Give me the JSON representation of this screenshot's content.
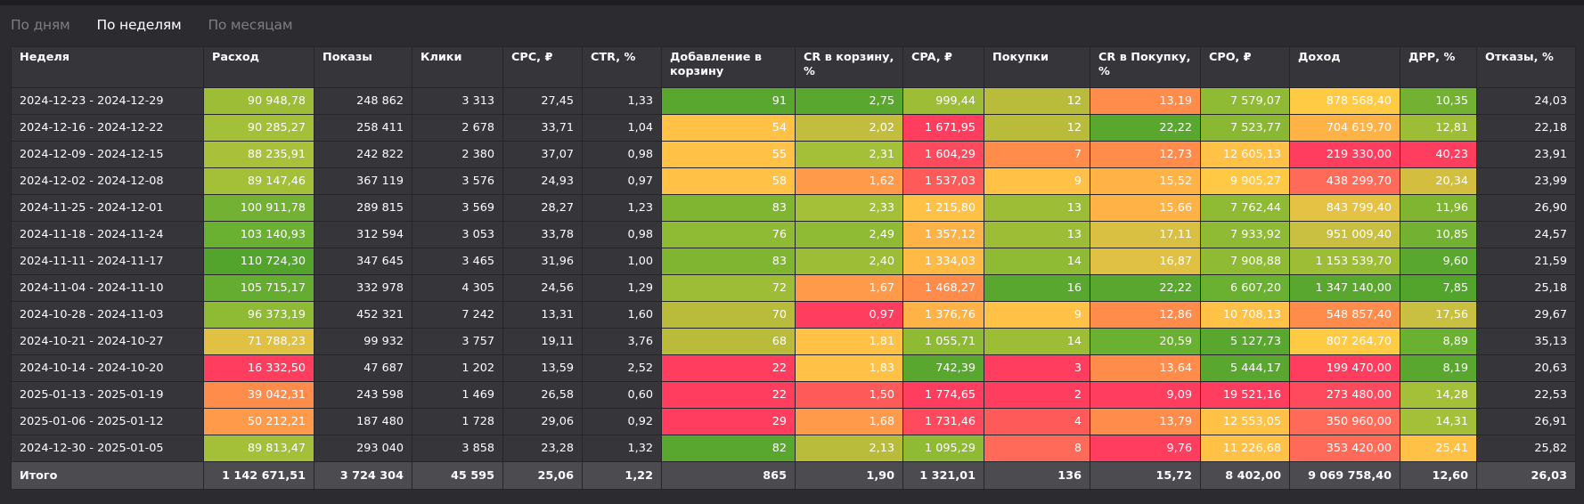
{
  "tabs": [
    {
      "label": "По дням",
      "active": false
    },
    {
      "label": "По неделям",
      "active": true
    },
    {
      "label": "По месяцам",
      "active": false
    }
  ],
  "headers": [
    "Неделя",
    "Расход",
    "Показы",
    "Клики",
    "CPC, ₽",
    "CTR, %",
    "Добавление в корзину",
    "CR в корзину, %",
    "CPA, ₽",
    "Покупки",
    "CR в Покупку, %",
    "CPO, ₽",
    "Доход",
    "ДРР, %",
    "Отказы, %"
  ],
  "rows": [
    [
      "2024-12-23 - 2024-12-29",
      "90 948,78",
      "248 862",
      "3 313",
      "27,45",
      "1,33",
      "91",
      "2,75",
      "999,44",
      "12",
      "13,19",
      "7 579,07",
      "878 568,40",
      "10,35",
      "24,03"
    ],
    [
      "2024-12-16 - 2024-12-22",
      "90 285,27",
      "258 411",
      "2 678",
      "33,71",
      "1,04",
      "54",
      "2,02",
      "1 671,95",
      "12",
      "22,22",
      "7 523,77",
      "704 619,70",
      "12,81",
      "22,18"
    ],
    [
      "2024-12-09 - 2024-12-15",
      "88 235,91",
      "242 822",
      "2 380",
      "37,07",
      "0,98",
      "55",
      "2,31",
      "1 604,29",
      "7",
      "12,73",
      "12 605,13",
      "219 330,00",
      "40,23",
      "23,91"
    ],
    [
      "2024-12-02 - 2024-12-08",
      "89 147,46",
      "367 119",
      "3 576",
      "24,93",
      "0,97",
      "58",
      "1,62",
      "1 537,03",
      "9",
      "15,52",
      "9 905,27",
      "438 299,70",
      "20,34",
      "23,99"
    ],
    [
      "2024-11-25 - 2024-12-01",
      "100 911,78",
      "289 815",
      "3 569",
      "28,27",
      "1,23",
      "83",
      "2,33",
      "1 215,80",
      "13",
      "15,66",
      "7 762,44",
      "843 799,40",
      "11,96",
      "26,90"
    ],
    [
      "2024-11-18 - 2024-11-24",
      "103 140,93",
      "312 594",
      "3 053",
      "33,78",
      "0,98",
      "76",
      "2,49",
      "1 357,12",
      "13",
      "17,11",
      "7 933,92",
      "951 009,40",
      "10,85",
      "24,57"
    ],
    [
      "2024-11-11 - 2024-11-17",
      "110 724,30",
      "347 645",
      "3 465",
      "31,96",
      "1,00",
      "83",
      "2,40",
      "1 334,03",
      "14",
      "16,87",
      "7 908,88",
      "1 153 539,70",
      "9,60",
      "21,59"
    ],
    [
      "2024-11-04 - 2024-11-10",
      "105 715,17",
      "332 978",
      "4 305",
      "24,56",
      "1,29",
      "72",
      "1,67",
      "1 468,27",
      "16",
      "22,22",
      "6 607,20",
      "1 347 140,00",
      "7,85",
      "25,18"
    ],
    [
      "2024-10-28 - 2024-11-03",
      "96 373,19",
      "452 321",
      "7 242",
      "13,31",
      "1,60",
      "70",
      "0,97",
      "1 376,76",
      "9",
      "12,86",
      "10 708,13",
      "548 857,40",
      "17,56",
      "29,67"
    ],
    [
      "2024-10-21 - 2024-10-27",
      "71 788,23",
      "99 932",
      "3 757",
      "19,11",
      "3,76",
      "68",
      "1,81",
      "1 055,71",
      "14",
      "20,59",
      "5 127,73",
      "807 264,70",
      "8,89",
      "35,13"
    ],
    [
      "2024-10-14 - 2024-10-20",
      "16 332,50",
      "47 687",
      "1 202",
      "13,59",
      "2,52",
      "22",
      "1,83",
      "742,39",
      "3",
      "13,64",
      "5 444,17",
      "199 470,00",
      "8,19",
      "20,63"
    ],
    [
      "2025-01-13 - 2025-01-19",
      "39 042,31",
      "243 598",
      "1 469",
      "26,58",
      "0,60",
      "22",
      "1,50",
      "1 774,65",
      "2",
      "9,09",
      "19 521,16",
      "273 480,00",
      "14,28",
      "22,53"
    ],
    [
      "2025-01-06 - 2025-01-12",
      "50 212,21",
      "187 480",
      "1 728",
      "29,06",
      "0,92",
      "29",
      "1,68",
      "1 731,46",
      "4",
      "13,79",
      "12 553,05",
      "350 960,00",
      "14,31",
      "26,91"
    ],
    [
      "2024-12-30 - 2025-01-05",
      "89 813,47",
      "293 040",
      "3 858",
      "23,28",
      "1,32",
      "82",
      "2,13",
      "1 095,29",
      "8",
      "9,76",
      "11 226,68",
      "353 420,00",
      "25,41",
      "25,82"
    ]
  ],
  "total": [
    "Итого",
    "1 142 671,51",
    "3 724 304",
    "45 595",
    "25,06",
    "1,22",
    "865",
    "1,90",
    "1 321,01",
    "136",
    "15,72",
    "8 402,00",
    "9 069 758,40",
    "12,60",
    "26,03"
  ],
  "cell_colors": [
    [
      null,
      "#9cbd35",
      null,
      null,
      null,
      null,
      "#5aa72f",
      "#5aa72f",
      "#9cbd35",
      "#b8bc3a",
      "#ff8c4a",
      "#8fba33",
      "#ffcb45",
      "#72b131",
      null
    ],
    [
      null,
      "#a4bf38",
      null,
      null,
      null,
      null,
      "#ffc146",
      "#c3bd3f",
      "#ff3e5f",
      "#b8bc3a",
      "#5aa72f",
      "#8ab833",
      "#ffb347",
      "#9cbd35",
      null
    ],
    [
      null,
      "#a9c03a",
      null,
      null,
      null,
      null,
      "#ffc146",
      "#a4bf38",
      "#ff4a5d",
      "#ff8c4a",
      "#ff8c4a",
      "#ffc146",
      "#ff3e5f",
      "#ff3e5f",
      null
    ],
    [
      null,
      "#a4bf38",
      null,
      null,
      null,
      null,
      "#ffc146",
      "#ff9a4b",
      "#ff5a5a",
      "#ffc146",
      "#ffb347",
      "#ffc845",
      "#ff6b58",
      "#d4be40",
      null
    ],
    [
      null,
      "#72b131",
      null,
      null,
      null,
      null,
      "#80b532",
      "#a4bf38",
      "#ffc146",
      "#9cbd35",
      "#ffb347",
      "#8fba33",
      "#e5c244",
      "#80b532",
      null
    ],
    [
      null,
      "#6ab131",
      null,
      null,
      null,
      null,
      "#8fba33",
      "#8fba33",
      "#ffb347",
      "#9cbd35",
      "#d9c042",
      "#8fba33",
      "#c9bf40",
      "#72b131",
      null
    ],
    [
      null,
      "#52a42d",
      null,
      null,
      null,
      null,
      "#80b532",
      "#9cbd35",
      "#ffba45",
      "#8fba33",
      "#e0c143",
      "#8fba33",
      "#9cbd35",
      "#5aa72f",
      null
    ],
    [
      null,
      "#64ad30",
      null,
      null,
      null,
      null,
      "#9cbd35",
      "#ff9a4b",
      "#ff8c4a",
      "#5aa72f",
      "#5aa72f",
      "#6ab131",
      "#5aa72f",
      "#52a42d",
      null
    ],
    [
      null,
      "#8fba33",
      null,
      null,
      null,
      null,
      "#b8bc3a",
      "#ff3e5f",
      "#ffb347",
      "#ffc146",
      "#ff8c4a",
      "#ffc146",
      "#ff8c4a",
      "#c9bf40",
      null
    ],
    [
      null,
      "#e0c143",
      null,
      null,
      null,
      null,
      "#b8bc3a",
      "#ffc146",
      "#8fba33",
      "#9cbd35",
      "#6ab131",
      "#5aa72f",
      "#ffcb45",
      "#6ab131",
      null
    ],
    [
      null,
      "#ff3e5f",
      null,
      null,
      null,
      null,
      "#ff3e5f",
      "#ffc146",
      "#5aa72f",
      "#ff3e5f",
      "#ff8c4a",
      "#5aa72f",
      "#ff3e5f",
      "#5aa72f",
      null
    ],
    [
      null,
      "#ff8c4a",
      null,
      null,
      null,
      null,
      "#ff3e5f",
      "#ff5a5a",
      "#ff3e5f",
      "#ff3e5f",
      "#ff3e5f",
      "#ff3e5f",
      "#ff4a5d",
      "#a4bf38",
      null
    ],
    [
      null,
      "#ff9a4b",
      null,
      null,
      null,
      null,
      "#ff3e5f",
      "#ff9a4b",
      "#ff4a5d",
      "#ff5a5a",
      "#ff8c4a",
      "#ffc146",
      "#ff6b58",
      "#a4bf38",
      null
    ],
    [
      null,
      "#a4bf38",
      null,
      null,
      null,
      null,
      "#5aa72f",
      "#b8bc3a",
      "#8fba33",
      "#ff6b58",
      "#ff3e5f",
      "#ffc146",
      "#ff6b58",
      "#ffc146",
      null
    ]
  ]
}
